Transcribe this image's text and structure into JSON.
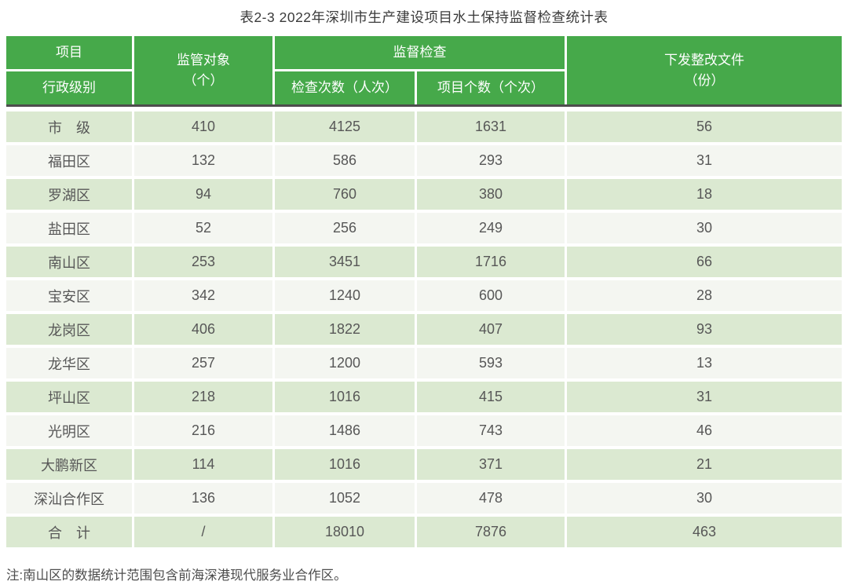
{
  "title": "表2-3 2022年深圳市生产建设项目水土保持监督检查统计表",
  "colors": {
    "header_green": "#46a94a",
    "row_green": "#dbe9d1",
    "row_light": "#f4f6f1",
    "header_divider_dark": "#4d4d4d",
    "header_text": "#ffffff",
    "body_text": "#575757"
  },
  "table": {
    "header": {
      "project": "项目",
      "admin_level": "行政级别",
      "supervised_objects": "监管对象",
      "supervised_objects_unit": "（个）",
      "supervision_inspection": "监督检查",
      "inspection_times": "检查次数（人次）",
      "project_count": "项目个数（个次）",
      "rectification_docs": "下发整改文件",
      "rectification_docs_unit": "（份）"
    },
    "rows": [
      {
        "label": "市　级",
        "values": [
          "410",
          "4125",
          "1631",
          "56"
        ]
      },
      {
        "label": "福田区",
        "values": [
          "132",
          "586",
          "293",
          "31"
        ]
      },
      {
        "label": "罗湖区",
        "values": [
          "94",
          "760",
          "380",
          "18"
        ]
      },
      {
        "label": "盐田区",
        "values": [
          "52",
          "256",
          "249",
          "30"
        ]
      },
      {
        "label": "南山区",
        "values": [
          "253",
          "3451",
          "1716",
          "66"
        ]
      },
      {
        "label": "宝安区",
        "values": [
          "342",
          "1240",
          "600",
          "28"
        ]
      },
      {
        "label": "龙岗区",
        "values": [
          "406",
          "1822",
          "407",
          "93"
        ]
      },
      {
        "label": "龙华区",
        "values": [
          "257",
          "1200",
          "593",
          "13"
        ]
      },
      {
        "label": "坪山区",
        "values": [
          "218",
          "1016",
          "415",
          "31"
        ]
      },
      {
        "label": "光明区",
        "values": [
          "216",
          "1486",
          "743",
          "46"
        ]
      },
      {
        "label": "大鹏新区",
        "values": [
          "114",
          "1016",
          "371",
          "21"
        ]
      },
      {
        "label": "深汕合作区",
        "values": [
          "136",
          "1052",
          "478",
          "30"
        ]
      },
      {
        "label": "合　计",
        "values": [
          "/",
          "18010",
          "7876",
          "463"
        ]
      }
    ]
  },
  "note": "注:南山区的数据统计范围包含前海深港现代服务业合作区。"
}
